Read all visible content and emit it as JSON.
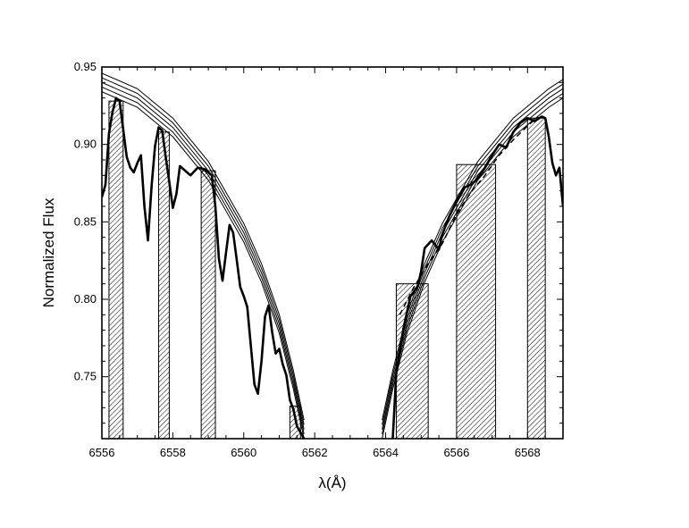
{
  "chart_data": {
    "type": "line",
    "title": "",
    "xlabel": "λ(Å)",
    "ylabel": "Normalized Flux",
    "xlim": [
      6556,
      6569
    ],
    "ylim": [
      0.71,
      0.95
    ],
    "x_ticks": [
      6556,
      6558,
      6560,
      6562,
      6564,
      6566,
      6568
    ],
    "y_ticks": [
      0.75,
      0.8,
      0.85,
      0.9,
      0.95
    ],
    "x_tick_labels": [
      "6556",
      "6558",
      "6560",
      "6562",
      "6564",
      "6566",
      "6568"
    ],
    "y_tick_labels": [
      "0.75",
      "0.80",
      "0.85",
      "0.90",
      "0.95"
    ],
    "grid": false,
    "legend": "none",
    "colors": {
      "line": "#000000",
      "hatch": "#000000",
      "background": "#ffffff"
    },
    "hatched_regions": [
      {
        "x0": 6556.2,
        "x1": 6556.6,
        "top": 0.928
      },
      {
        "x0": 6557.6,
        "x1": 6557.9,
        "top": 0.908
      },
      {
        "x0": 6558.8,
        "x1": 6559.2,
        "top": 0.883
      },
      {
        "x0": 6561.3,
        "x1": 6561.6,
        "top": 0.731
      },
      {
        "x0": 6564.3,
        "x1": 6565.2,
        "top": 0.81
      },
      {
        "x0": 6566.0,
        "x1": 6567.1,
        "top": 0.887
      },
      {
        "x0": 6568.0,
        "x1": 6568.5,
        "top": 0.917
      }
    ],
    "model_profiles": {
      "core_center": 6562.8,
      "offsets": [
        0.0,
        0.003,
        0.006,
        0.009,
        0.012
      ],
      "points_blue": [
        [
          6556.0,
          0.934
        ],
        [
          6557.0,
          0.924
        ],
        [
          6558.0,
          0.905
        ],
        [
          6559.0,
          0.877
        ],
        [
          6560.0,
          0.837
        ],
        [
          6560.5,
          0.811
        ],
        [
          6561.0,
          0.778
        ],
        [
          6561.4,
          0.742
        ],
        [
          6561.7,
          0.71
        ]
      ],
      "points_red": [
        [
          6563.9,
          0.71
        ],
        [
          6564.2,
          0.742
        ],
        [
          6564.6,
          0.778
        ],
        [
          6565.1,
          0.811
        ],
        [
          6565.6,
          0.837
        ],
        [
          6566.6,
          0.877
        ],
        [
          6567.6,
          0.905
        ],
        [
          6568.6,
          0.924
        ],
        [
          6569.0,
          0.93
        ]
      ]
    },
    "series": [
      {
        "style": "solid-thick",
        "x": [
          6556.0,
          6556.1,
          6556.2,
          6556.3,
          6556.4,
          6556.5,
          6556.6,
          6556.7,
          6556.8,
          6556.9,
          6557.0,
          6557.1,
          6557.2,
          6557.3,
          6557.4,
          6557.5,
          6557.6,
          6557.7,
          6557.8,
          6557.9,
          6558.0,
          6558.1,
          6558.2,
          6558.3,
          6558.5,
          6558.7,
          6558.9,
          6559.1,
          6559.2,
          6559.3,
          6559.4,
          6559.5,
          6559.6,
          6559.7,
          6559.8,
          6559.9,
          6560.0,
          6560.1,
          6560.2,
          6560.3,
          6560.4,
          6560.5,
          6560.6,
          6560.7,
          6560.8,
          6560.9,
          6561.0,
          6561.1,
          6561.2,
          6561.3,
          6561.4,
          6561.5,
          6561.6,
          6561.7
        ],
        "y": [
          0.866,
          0.874,
          0.907,
          0.921,
          0.93,
          0.928,
          0.91,
          0.892,
          0.885,
          0.882,
          0.888,
          0.893,
          0.86,
          0.838,
          0.873,
          0.899,
          0.911,
          0.909,
          0.892,
          0.876,
          0.859,
          0.868,
          0.886,
          0.884,
          0.88,
          0.885,
          0.884,
          0.88,
          0.86,
          0.826,
          0.812,
          0.83,
          0.848,
          0.843,
          0.826,
          0.808,
          0.802,
          0.795,
          0.77,
          0.745,
          0.739,
          0.76,
          0.789,
          0.796,
          0.779,
          0.765,
          0.768,
          0.758,
          0.751,
          0.735,
          0.729,
          0.718,
          0.714,
          0.71
        ]
      },
      {
        "style": "solid-thick",
        "x": [
          6564.2,
          6564.3,
          6564.5,
          6564.7,
          6564.9,
          6565.0,
          6565.1,
          6565.3,
          6565.5,
          6565.6,
          6565.8,
          6566.0,
          6566.2,
          6566.4,
          6566.6,
          6566.8,
          6567.0,
          6567.2,
          6567.4,
          6567.6,
          6567.8,
          6568.0,
          6568.2,
          6568.4,
          6568.5,
          6568.6,
          6568.7,
          6568.8,
          6568.9,
          6569.0
        ],
        "y": [
          0.71,
          0.752,
          0.781,
          0.802,
          0.808,
          0.818,
          0.833,
          0.838,
          0.832,
          0.842,
          0.854,
          0.863,
          0.872,
          0.874,
          0.878,
          0.885,
          0.893,
          0.9,
          0.898,
          0.908,
          0.914,
          0.917,
          0.915,
          0.918,
          0.917,
          0.905,
          0.888,
          0.88,
          0.885,
          0.86
        ]
      },
      {
        "style": "dashed",
        "x": [
          6564.4,
          6564.8,
          6565.2,
          6565.6,
          6566.0,
          6566.4,
          6566.8,
          6567.2,
          6567.6,
          6568.0,
          6568.3
        ],
        "y": [
          0.79,
          0.808,
          0.823,
          0.836,
          0.855,
          0.869,
          0.88,
          0.893,
          0.903,
          0.912,
          0.918
        ]
      }
    ]
  }
}
